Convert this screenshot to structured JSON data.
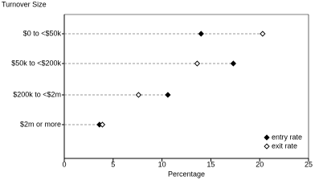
{
  "chart_data": {
    "type": "dot",
    "y_axis_title": "Turnover Size",
    "x_axis_title": "Percentage",
    "categories": [
      "$0 to <$50k",
      "$50k to <$200k",
      "$200k to <$2m",
      "$2m or more"
    ],
    "series": [
      {
        "name": "entry rate",
        "color": "#000000",
        "marker": "filled",
        "values": [
          14.0,
          17.3,
          10.6,
          3.6
        ]
      },
      {
        "name": "exit rate",
        "color": "#000000",
        "marker": "open",
        "values": [
          20.3,
          13.6,
          7.6,
          3.9
        ]
      }
    ],
    "xlim": [
      0,
      25
    ],
    "xticks": [
      0,
      5,
      10,
      15,
      20,
      25
    ],
    "legend": "lower right"
  }
}
